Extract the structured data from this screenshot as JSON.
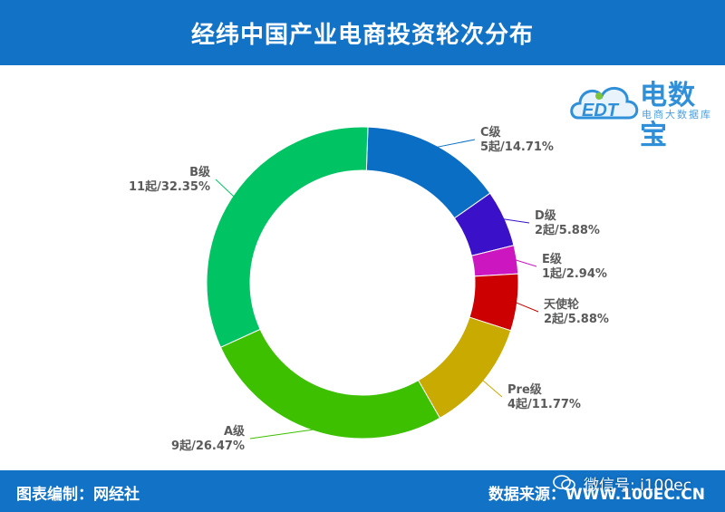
{
  "header": {
    "title": "经纬中国产业电商投资轮次分布"
  },
  "logo": {
    "main": "电数宝",
    "sub": "电商大数据库",
    "mark": "EDT"
  },
  "footer": {
    "left": "图表编制：网经社",
    "right": "数据来源：WWW.100EC.CN"
  },
  "watermark": {
    "text": "微信号: i100ec"
  },
  "chart_data": {
    "type": "pie",
    "style": "donut",
    "categories": [
      "C级",
      "D级",
      "E级",
      "天使轮",
      "Pre级",
      "A级",
      "B级"
    ],
    "values": [
      5,
      2,
      1,
      2,
      4,
      9,
      11
    ],
    "value_labels": [
      "5起/14.71%",
      "2起/5.88%",
      "1起/2.94%",
      "2起/5.88%",
      "4起/11.77%",
      "9起/26.47%",
      "11起/32.35%"
    ],
    "colors": [
      "#0a6ec4",
      "#3a10c8",
      "#cc16c0",
      "#cc0000",
      "#c8aa00",
      "#3cc000",
      "#00c464"
    ],
    "start_angle_deg": 2,
    "legend": "none"
  }
}
